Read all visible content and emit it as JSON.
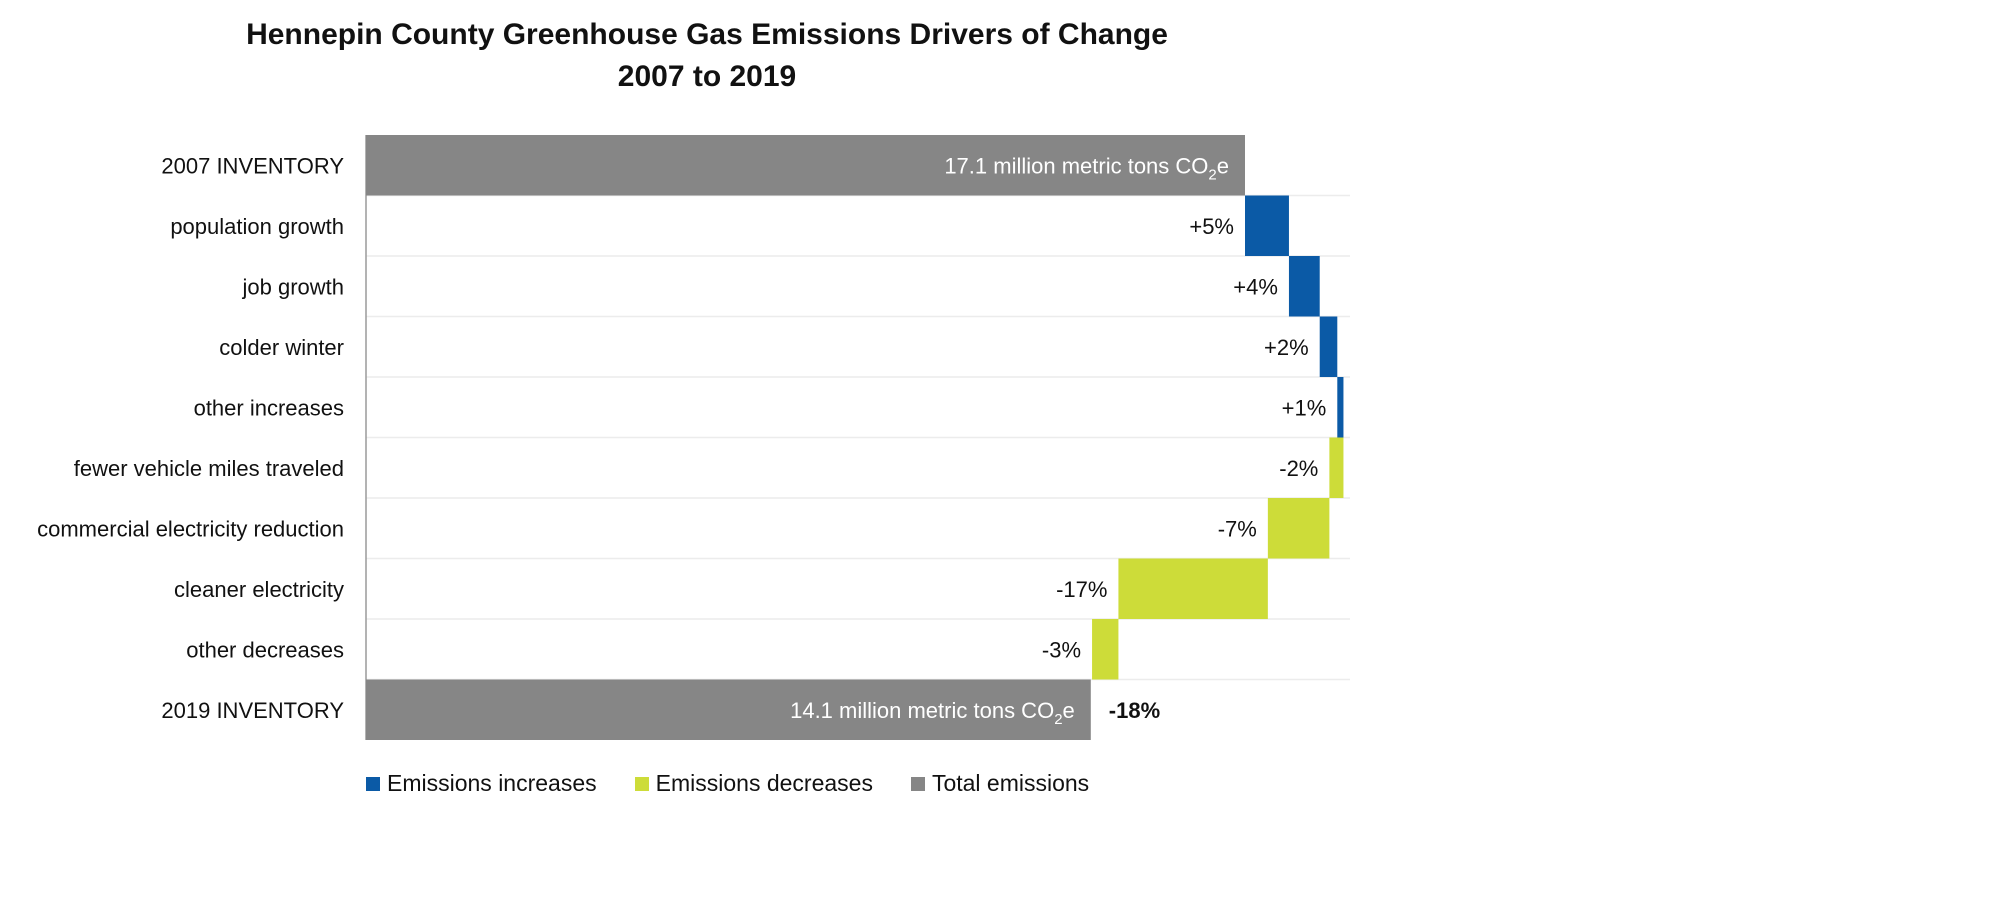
{
  "chart_data": {
    "type": "bar",
    "subtype": "horizontal-waterfall",
    "title": "Hennepin County Greenhouse Gas Emissions Drivers of Change",
    "subtitle": "2007 to 2019",
    "categories": [
      "2007 INVENTORY",
      "population growth",
      "job growth",
      "colder winter",
      "other increases",
      "fewer vehicle miles traveled",
      "commercial electricity reduction",
      "cleaner electricity",
      "other decreases",
      "2019 INVENTORY"
    ],
    "steps": [
      {
        "category": "2007 INVENTORY",
        "kind": "total",
        "value": 17.1
      },
      {
        "category": "population growth",
        "kind": "increase",
        "value": 5,
        "label": "+5%"
      },
      {
        "category": "job growth",
        "kind": "increase",
        "value": 3.5,
        "label": "+4%"
      },
      {
        "category": "colder winter",
        "kind": "increase",
        "value": 2,
        "label": "+2%"
      },
      {
        "category": "other increases",
        "kind": "increase",
        "value": 0.7,
        "label": "+1%"
      },
      {
        "category": "fewer vehicle miles traveled",
        "kind": "decrease",
        "value": -1.6,
        "label": "-2%"
      },
      {
        "category": "commercial electricity reduction",
        "kind": "decrease",
        "value": -7,
        "label": "-7%"
      },
      {
        "category": "cleaner electricity",
        "kind": "decrease",
        "value": -17,
        "label": "-17%"
      },
      {
        "category": "other decreases",
        "kind": "decrease",
        "value": -3,
        "label": "-3%"
      },
      {
        "category": "2019 INVENTORY",
        "kind": "total",
        "value": 14.1
      }
    ],
    "total_labels": {
      "start": {
        "pre": "17.1 million metric tons CO",
        "sub": "2",
        "post": "e"
      },
      "end": {
        "pre": "14.1 million metric tons CO",
        "sub": "2",
        "post": "e"
      }
    },
    "net_change_label": "-18%",
    "legend": [
      {
        "name": "Emissions increases",
        "color": "#0b5aa6"
      },
      {
        "name": "Emissions decreases",
        "color": "#cddc39"
      },
      {
        "name": "Total emissions",
        "color": "#868686"
      }
    ],
    "colors": {
      "increase": "#0b5aa6",
      "decrease": "#cddc39",
      "total": "#868686",
      "gridline": "#ececec",
      "axis": "#9a9a9a"
    },
    "legend_placement": "bottom-left"
  }
}
